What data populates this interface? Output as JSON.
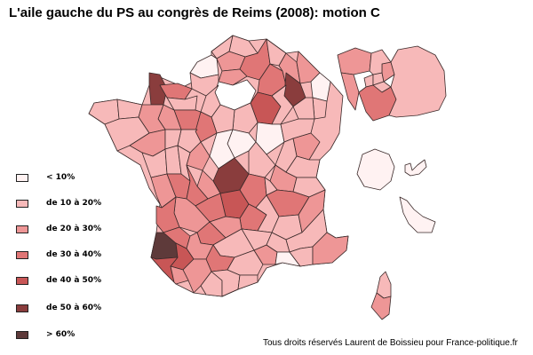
{
  "title": "L'aile gauche du PS au congrès de Reims (2008): motion C",
  "credit": "Tous droits réservés Laurent de Boissieu pour France-politique.fr",
  "colors": {
    "c0": "#fff2f2",
    "c1": "#f7b9b9",
    "c2": "#ee9696",
    "c3": "#e07676",
    "c4": "#c85656",
    "c5": "#8a3d3d",
    "c6": "#5e3a3a",
    "stroke": "#3a2a2a"
  },
  "legend": [
    {
      "label": "< 10%",
      "color": "#fff2f2"
    },
    {
      "label": "de 10 à 20%",
      "color": "#f7b9b9"
    },
    {
      "label": "de 20 à 30%",
      "color": "#ee9696"
    },
    {
      "label": "de 30 à 40%",
      "color": "#e07676"
    },
    {
      "label": "de 40 à 50%",
      "color": "#c85656"
    },
    {
      "label": "de 50 à 60%",
      "color": "#8a3d3d"
    },
    {
      "label": "> 60%",
      "color": "#5e3a3a"
    }
  ]
}
